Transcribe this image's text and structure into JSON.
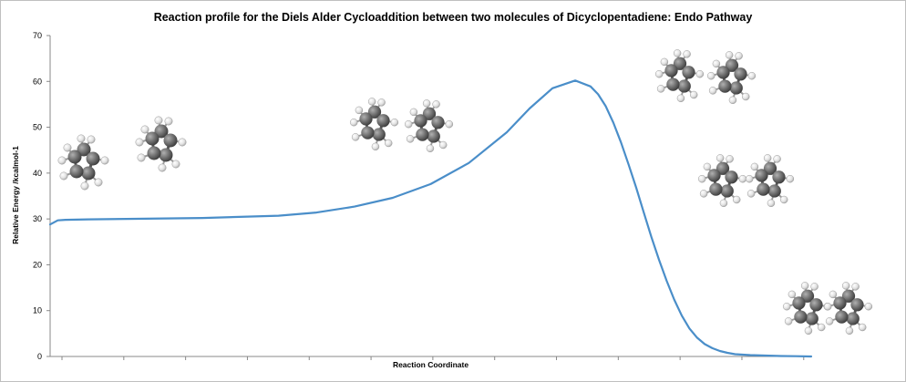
{
  "chart_data": {
    "type": "line",
    "title": "Reaction profile for the Diels Alder Cycloaddition between two molecules of Dicyclopentadiene: Endo Pathway",
    "xlabel": "Reaction Coordinate",
    "ylabel": "Relative Energy /kcalmol-1",
    "ylim": [
      0,
      70
    ],
    "yticks": [
      "0",
      "10",
      "20",
      "30",
      "40",
      "50",
      "60",
      "70"
    ],
    "xlim": [
      0,
      100
    ],
    "grid": false,
    "legend": "none",
    "series": [
      {
        "color": "#4a8ec9",
        "x": [
          0,
          1,
          2,
          5,
          10,
          20,
          30,
          35,
          40,
          45,
          50,
          55,
          60,
          63,
          66,
          69,
          71,
          72,
          73,
          74,
          75,
          76,
          77,
          78,
          79,
          80,
          81,
          82,
          83,
          84,
          85,
          86,
          87,
          88,
          89,
          90,
          92,
          94,
          96,
          98,
          100
        ],
        "y": [
          28.8,
          29.7,
          29.8,
          29.9,
          30.0,
          30.2,
          30.7,
          31.4,
          32.7,
          34.6,
          37.6,
          42.2,
          48.9,
          54.1,
          58.5,
          60.2,
          58.9,
          57.2,
          54.6,
          51.0,
          46.7,
          41.9,
          36.8,
          31.4,
          26.1,
          21.1,
          16.5,
          12.4,
          8.9,
          6.1,
          4.1,
          2.7,
          1.8,
          1.2,
          0.8,
          0.5,
          0.3,
          0.2,
          0.1,
          0.05,
          0.0
        ]
      }
    ]
  }
}
